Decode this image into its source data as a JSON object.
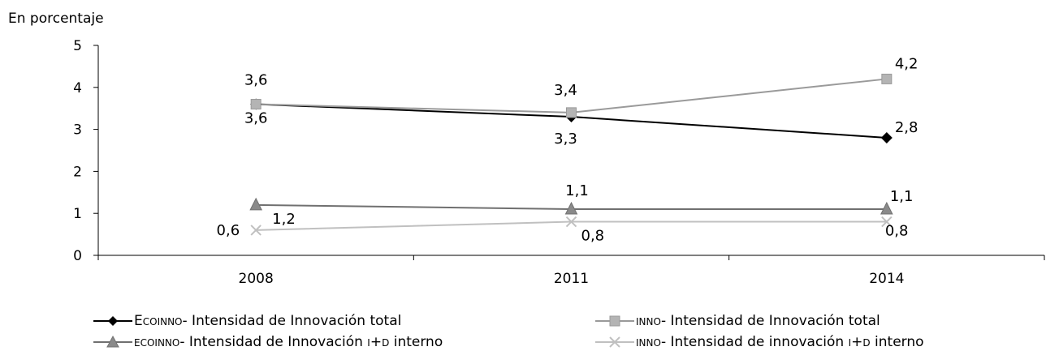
{
  "chart_data": {
    "type": "line",
    "ylabel": "En porcentaje",
    "categories": [
      "2008",
      "2011",
      "2014"
    ],
    "ylim": [
      0,
      5
    ],
    "yticks": [
      "0",
      "1",
      "2",
      "3",
      "4",
      "5"
    ],
    "grid": false,
    "legend_position": "bottom",
    "series": [
      {
        "key": "ecoinno_total",
        "prefix": "Ecoinno",
        "name": "- Intensidad de Innovación total",
        "values": [
          3.6,
          3.3,
          2.8
        ],
        "labels": [
          "3,6",
          "3,3",
          "2,8"
        ],
        "color": "#000000",
        "marker": "diamond",
        "marker_fill": "#000000"
      },
      {
        "key": "inno_total",
        "prefix": "inno",
        "name": "- Intensidad de Innovación total",
        "values": [
          3.6,
          3.4,
          4.2
        ],
        "labels": [
          "3,6",
          "3,4",
          "4,2"
        ],
        "color": "#9a9a9a",
        "marker": "square",
        "marker_fill": "#b4b4b4"
      },
      {
        "key": "ecoinno_id",
        "prefix": "ecoinno",
        "name_before": "- Intensidad de Innovación ",
        "name_sc": "i+d",
        "name_after": " interno",
        "values": [
          1.2,
          1.1,
          1.1
        ],
        "labels": [
          "1,2",
          "1,1",
          "1,1"
        ],
        "color": "#707070",
        "marker": "triangle",
        "marker_fill": "#8a8a8a"
      },
      {
        "key": "inno_id",
        "prefix": "inno",
        "name_before": "- Intensidad de innovación ",
        "name_sc": "i+d",
        "name_after": " interno",
        "values": [
          0.6,
          0.8,
          0.8
        ],
        "labels": [
          "0,6",
          "0,8",
          "0,8"
        ],
        "color": "#c0c0c0",
        "marker": "cross",
        "marker_fill": "#c0c0c0"
      }
    ]
  }
}
